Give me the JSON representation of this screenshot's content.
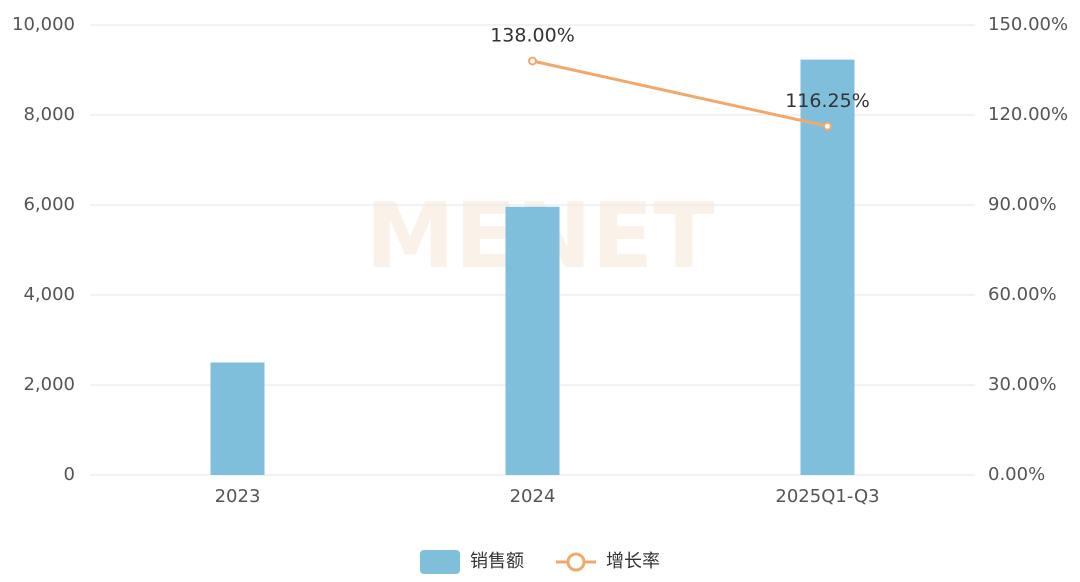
{
  "chart_data": {
    "type": "bar",
    "watermark": "MENET",
    "categories": [
      "2023",
      "2024",
      "2025Q1-Q3"
    ],
    "series": [
      {
        "name": "销售额",
        "type": "bar",
        "color": "#7fbfdc",
        "values": [
          2500,
          5960,
          9230
        ]
      },
      {
        "name": "增长率",
        "type": "line",
        "axis": "y2",
        "color": "#f0a96a",
        "values": [
          null,
          138,
          116.25
        ],
        "value_labels": [
          null,
          "138.00%",
          "116.25%"
        ]
      }
    ],
    "ylim": [
      0,
      10000
    ],
    "yticks": [
      0,
      {
        "value": 2000,
        "label": "2,000"
      },
      {
        "value": 4000,
        "label": "4,000"
      },
      {
        "value": 6000,
        "label": "6,000"
      },
      {
        "value": 8000,
        "label": "8,000"
      },
      {
        "value": 10000,
        "label": "10,000"
      }
    ],
    "y2lim": [
      0,
      150
    ],
    "y2ticks": [
      {
        "value": 0,
        "label": "0.00%"
      },
      {
        "value": 30,
        "label": "30.00%"
      },
      {
        "value": 60,
        "label": "60.00%"
      },
      {
        "value": 90,
        "label": "90.00%"
      },
      {
        "value": 120,
        "label": "120.00%"
      },
      {
        "value": 150,
        "label": "150.00%"
      }
    ],
    "grid": true
  }
}
